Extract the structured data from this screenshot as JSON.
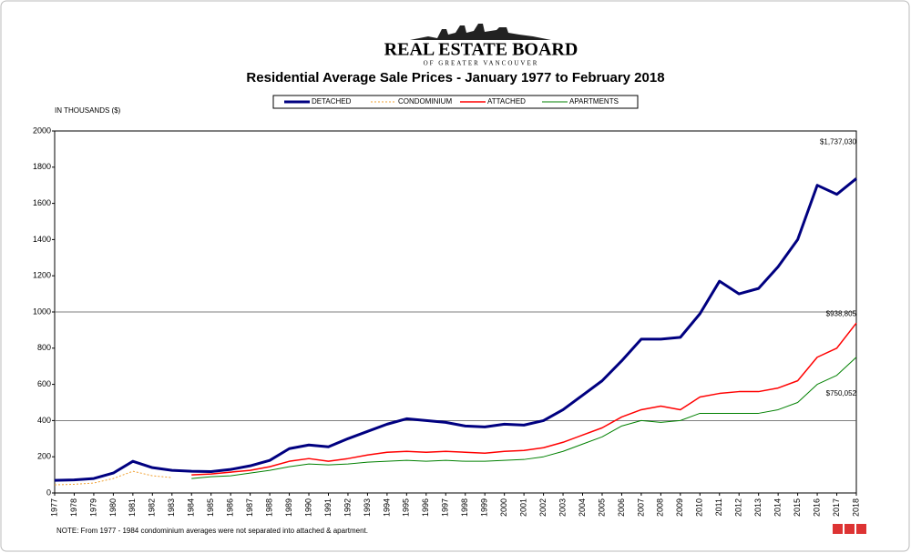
{
  "chart_data": {
    "type": "line",
    "logo": "REAL ESTATE BOARD",
    "logo_subtitle": "OF GREATER VANCOUVER",
    "title": "Residential Average Sale Prices  -  January 1977 to February 2018",
    "y_label": "IN THOUSANDS ($)",
    "note": "NOTE:  From 1977 - 1984 condominium averages were not separated into attached & apartment.",
    "categories": [
      "1977",
      "1978",
      "1979",
      "1980",
      "1981",
      "1982",
      "1983",
      "1984",
      "1985",
      "1986",
      "1987",
      "1988",
      "1989",
      "1990",
      "1991",
      "1992",
      "1993",
      "1994",
      "1995",
      "1996",
      "1997",
      "1998",
      "1999",
      "2000",
      "2001",
      "2002",
      "2003",
      "2004",
      "2005",
      "2006",
      "2007",
      "2008",
      "2009",
      "2010",
      "2011",
      "2012",
      "2013",
      "2014",
      "2015",
      "2016",
      "2017",
      "2018"
    ],
    "ylim": [
      0,
      2000
    ],
    "yticks": [
      0,
      200,
      400,
      600,
      800,
      1000,
      1200,
      1400,
      1600,
      1800,
      2000
    ],
    "grid_y": [
      400,
      1000
    ],
    "series": [
      {
        "name": "DETACHED",
        "color": "#000080",
        "width": 3,
        "dash": "none",
        "values": [
          70,
          72,
          80,
          110,
          175,
          140,
          125,
          120,
          118,
          130,
          150,
          180,
          245,
          265,
          255,
          300,
          340,
          380,
          410,
          400,
          390,
          370,
          365,
          380,
          375,
          400,
          460,
          540,
          620,
          730,
          850,
          850,
          860,
          990,
          1170,
          1100,
          1130,
          1250,
          1400,
          1700,
          1650,
          1737.03
        ],
        "value_labels": [
          null,
          null,
          null,
          null,
          null,
          null,
          null,
          null,
          null,
          null,
          null,
          null,
          null,
          null,
          null,
          null,
          null,
          null,
          null,
          null,
          null,
          null,
          null,
          null,
          null,
          null,
          null,
          null,
          null,
          null,
          null,
          null,
          null,
          null,
          null,
          null,
          null,
          null,
          null,
          null,
          null,
          "$1,737,030"
        ]
      },
      {
        "name": "CONDOMINIUM",
        "color": "#f0a030",
        "width": 1,
        "dash": "2 2",
        "values": [
          45,
          48,
          55,
          80,
          120,
          95,
          85,
          null,
          null,
          null,
          null,
          null,
          null,
          null,
          null,
          null,
          null,
          null,
          null,
          null,
          null,
          null,
          null,
          null,
          null,
          null,
          null,
          null,
          null,
          null,
          null,
          null,
          null,
          null,
          null,
          null,
          null,
          null,
          null,
          null,
          null,
          null
        ]
      },
      {
        "name": "ATTACHED",
        "color": "#ff0000",
        "width": 1.5,
        "dash": "none",
        "values": [
          null,
          null,
          null,
          null,
          null,
          null,
          null,
          100,
          105,
          115,
          125,
          145,
          175,
          190,
          175,
          190,
          210,
          225,
          230,
          225,
          230,
          225,
          220,
          230,
          235,
          250,
          280,
          320,
          360,
          420,
          460,
          480,
          460,
          530,
          550,
          560,
          560,
          580,
          620,
          750,
          800,
          938.805
        ],
        "value_labels": [
          null,
          null,
          null,
          null,
          null,
          null,
          null,
          null,
          null,
          null,
          null,
          null,
          null,
          null,
          null,
          null,
          null,
          null,
          null,
          null,
          null,
          null,
          null,
          null,
          null,
          null,
          null,
          null,
          null,
          null,
          null,
          null,
          null,
          null,
          null,
          null,
          null,
          null,
          null,
          null,
          null,
          "$938,805"
        ]
      },
      {
        "name": "APARTMENTS",
        "color": "#008000",
        "width": 1,
        "dash": "none",
        "values": [
          null,
          null,
          null,
          null,
          null,
          null,
          null,
          80,
          90,
          95,
          110,
          125,
          145,
          160,
          155,
          160,
          170,
          175,
          180,
          175,
          180,
          175,
          175,
          180,
          185,
          200,
          230,
          270,
          310,
          370,
          400,
          390,
          400,
          440,
          440,
          440,
          440,
          460,
          500,
          600,
          650,
          750.052
        ],
        "value_labels": [
          null,
          null,
          null,
          null,
          null,
          null,
          null,
          null,
          null,
          null,
          null,
          null,
          null,
          null,
          null,
          null,
          null,
          null,
          null,
          null,
          null,
          null,
          null,
          null,
          null,
          null,
          null,
          null,
          null,
          null,
          null,
          null,
          null,
          null,
          null,
          null,
          null,
          null,
          null,
          null,
          null,
          "$750,052"
        ]
      }
    ]
  }
}
